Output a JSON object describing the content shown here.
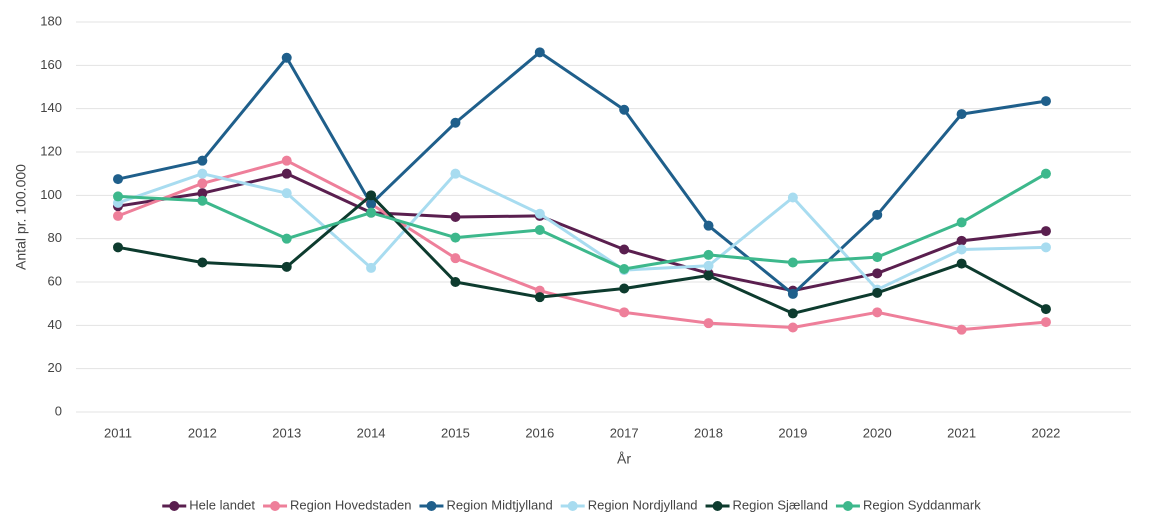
{
  "chart_data": {
    "type": "line",
    "x_label": "År",
    "y_label": "Antal pr. 100.000",
    "categories": [
      "2011",
      "2012",
      "2013",
      "2014",
      "2015",
      "2016",
      "2017",
      "2018",
      "2019",
      "2020",
      "2021",
      "2022"
    ],
    "ylim": [
      0,
      180
    ],
    "yticks": [
      0,
      20,
      40,
      60,
      80,
      100,
      120,
      140,
      160,
      180
    ],
    "grid": true,
    "legend": "bottom",
    "series": [
      {
        "name": "Hele landet",
        "color": "#5a1f4f",
        "values": [
          95,
          101,
          110,
          92,
          90,
          90.5,
          75,
          64,
          56,
          64,
          79,
          83.5
        ]
      },
      {
        "name": "Region Hovedstaden",
        "color": "#ee7f9a",
        "values": [
          90.5,
          105.5,
          116,
          96,
          71,
          56,
          46,
          41,
          39,
          46,
          38,
          41.5
        ]
      },
      {
        "name": "Region Midtjylland",
        "color": "#1f5f8b",
        "values": [
          107.5,
          116,
          163.5,
          96,
          133.5,
          166,
          139.5,
          86,
          54.5,
          91,
          137.5,
          143.5
        ]
      },
      {
        "name": "Region Nordjylland",
        "color": "#a8dcf0",
        "values": [
          96.5,
          110,
          101,
          66.5,
          110,
          91.5,
          65.5,
          67.5,
          99,
          56.5,
          75,
          76
        ]
      },
      {
        "name": "Region Sjælland",
        "color": "#0d3b2e",
        "values": [
          76,
          69,
          67,
          100,
          60,
          53,
          57,
          63,
          45.5,
          55,
          68.5,
          47.5
        ]
      },
      {
        "name": "Region Syddanmark",
        "color": "#3db88c",
        "values": [
          99.5,
          97.5,
          80,
          92,
          80.5,
          84,
          66,
          72.5,
          69,
          71.5,
          87.5,
          110
        ]
      }
    ]
  }
}
